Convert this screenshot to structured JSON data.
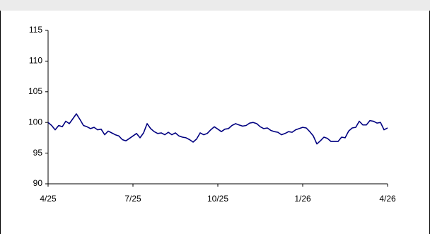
{
  "chart_data": {
    "type": "line",
    "series": [
      {
        "color": "#000080",
        "values": [
          100,
          99.5,
          98.8,
          99.5,
          99.3,
          100.2,
          99.8,
          100.6,
          101.4,
          100.5,
          99.5,
          99.3,
          99.0,
          99.2,
          98.8,
          98.9,
          98.0,
          98.6,
          98.3,
          98.0,
          97.8,
          97.2,
          97.0,
          97.4,
          97.8,
          98.2,
          97.5,
          98.3,
          99.8,
          99.0,
          98.5,
          98.2,
          98.3,
          98.0,
          98.4,
          98.0,
          98.3,
          97.8,
          97.6,
          97.5,
          97.2,
          96.8,
          97.3,
          98.3,
          98.0,
          98.2,
          98.8,
          99.3,
          98.9,
          98.5,
          98.9,
          99.0,
          99.5,
          99.8,
          99.6,
          99.4,
          99.5,
          99.9,
          100.0,
          99.8,
          99.3,
          99.0,
          99.1,
          98.7,
          98.5,
          98.4,
          98.0,
          98.2,
          98.5,
          98.4,
          98.8,
          99.0,
          99.2,
          99.1,
          98.5,
          97.8,
          96.5,
          97.0,
          97.6,
          97.4,
          96.9,
          96.9,
          96.9,
          97.6,
          97.5,
          98.6,
          99.1,
          99.2,
          100.2,
          99.6,
          99.6,
          100.3,
          100.2,
          99.9,
          100.0,
          98.8,
          99.1
        ]
      }
    ],
    "xticks": [
      "4/25",
      "7/25",
      "10/25",
      "1/26",
      "4/26"
    ],
    "ylim": [
      90,
      115
    ],
    "yticks": [
      90,
      95,
      100,
      105,
      110,
      115
    ]
  }
}
